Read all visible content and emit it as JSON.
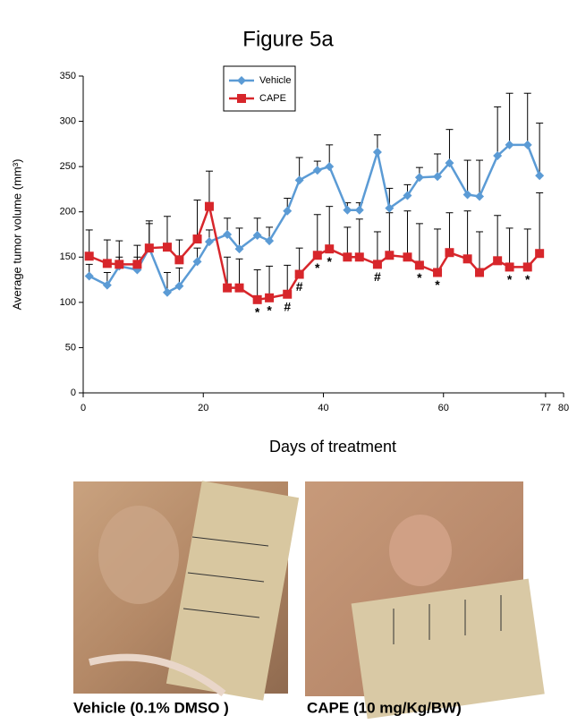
{
  "chart_data": {
    "type": "line",
    "title": "Figure 5a",
    "xlabel": "Days of treatment",
    "ylabel": "Average tumor volume (mm³)",
    "x": [
      1,
      4,
      6,
      9,
      11,
      14,
      16,
      19,
      21,
      24,
      26,
      29,
      31,
      34,
      36,
      39,
      41,
      44,
      46,
      49,
      51,
      54,
      56,
      59,
      61,
      64,
      66,
      69,
      71,
      74,
      76
    ],
    "xlim": [
      0,
      80
    ],
    "xticks": [
      0,
      20,
      40,
      60,
      77,
      80
    ],
    "ylim": [
      0,
      350
    ],
    "yticks": [
      0,
      50,
      100,
      150,
      200,
      250,
      300,
      350
    ],
    "legend": "upper-left",
    "series": [
      {
        "name": "Vehicle",
        "color": "#5b9bd5",
        "marker": "diamond",
        "values": [
          129,
          119,
          140,
          136,
          160,
          111,
          118,
          145,
          167,
          175,
          159,
          174,
          168,
          201,
          235,
          246,
          250,
          202,
          202,
          266,
          204,
          218,
          238,
          239,
          254,
          219,
          217,
          262,
          274,
          274,
          240
        ],
        "errors": [
          13,
          14,
          10,
          14,
          30,
          22,
          20,
          15,
          13,
          18,
          23,
          19,
          15,
          14,
          25,
          10,
          24,
          8,
          8,
          19,
          22,
          12,
          11,
          25,
          37,
          38,
          40,
          54,
          57,
          57,
          58
        ]
      },
      {
        "name": "CAPE",
        "color": "#d7262b",
        "marker": "square",
        "values": [
          151,
          143,
          142,
          142,
          160,
          161,
          147,
          170,
          206,
          116,
          116,
          103,
          105,
          109,
          131,
          152,
          159,
          150,
          150,
          142,
          152,
          150,
          141,
          133,
          155,
          148,
          133,
          146,
          139,
          139,
          154
        ],
        "errors": [
          29,
          26,
          26,
          21,
          27,
          34,
          22,
          43,
          39,
          34,
          32,
          33,
          35,
          32,
          29,
          45,
          47,
          33,
          42,
          36,
          47,
          51,
          46,
          48,
          44,
          53,
          45,
          50,
          43,
          42,
          67
        ],
        "significance": [
          null,
          null,
          null,
          null,
          null,
          null,
          null,
          null,
          null,
          null,
          null,
          "*",
          "*",
          "#",
          "#",
          "*",
          "*",
          null,
          null,
          "#",
          null,
          null,
          "*",
          "*",
          null,
          null,
          null,
          null,
          "*",
          "*",
          null
        ]
      }
    ]
  },
  "photos": [
    {
      "caption": "Vehicle (0.1% DMSO )"
    },
    {
      "caption": "CAPE  (10 mg/Kg/BW)"
    }
  ]
}
